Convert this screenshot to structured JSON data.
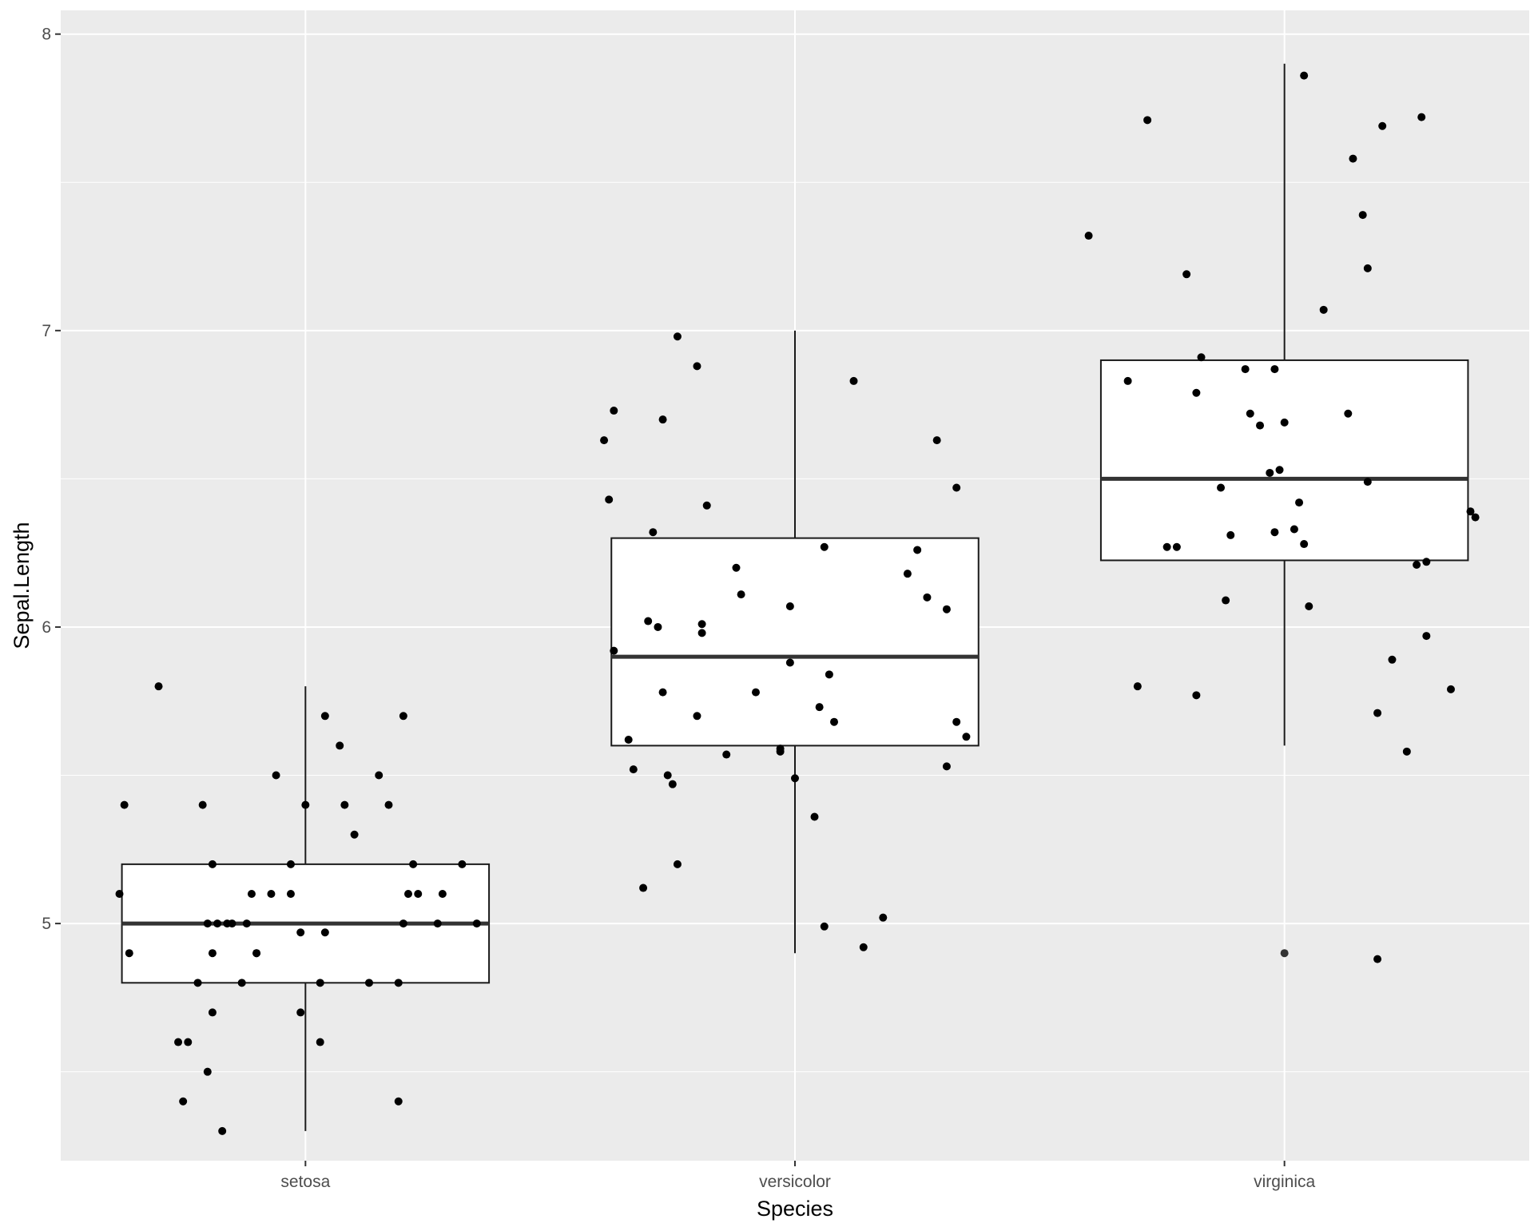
{
  "chart_data": {
    "type": "box",
    "xlabel": "Species",
    "ylabel": "Sepal.Length",
    "categories": [
      "setosa",
      "versicolor",
      "virginica"
    ],
    "ylim": [
      4.2,
      8.08
    ],
    "yticks": [
      5,
      6,
      7,
      8
    ],
    "grid": true,
    "colors": {
      "panel": "#ebebeb",
      "grid": "#ffffff",
      "box_fill": "#ffffff",
      "box_stroke": "#1a1a1a",
      "point": "#000000"
    },
    "boxes": [
      {
        "category": "setosa",
        "min": 4.3,
        "q1": 4.8,
        "median": 5.0,
        "q3": 5.2,
        "max": 5.8
      },
      {
        "category": "versicolor",
        "min": 4.9,
        "q1": 5.6,
        "median": 5.9,
        "q3": 6.3,
        "max": 7.0
      },
      {
        "category": "virginica",
        "min": 5.6,
        "q1": 6.225,
        "median": 6.5,
        "q3": 6.9,
        "max": 7.9,
        "outliers": [
          4.9
        ]
      }
    ],
    "points": [
      {
        "category": "setosa",
        "jitter": [
          -0.38,
          -0.36,
          -0.37,
          -0.3,
          -0.25,
          -0.26,
          -0.24,
          -0.2,
          -0.19,
          -0.22,
          -0.21,
          -0.2,
          -0.19,
          -0.19,
          -0.18,
          -0.17,
          -0.16,
          -0.15,
          -0.13,
          -0.12,
          -0.11,
          -0.1,
          -0.1,
          -0.07,
          -0.06,
          -0.03,
          -0.03,
          -0.01,
          -0.01,
          0.0,
          0.03,
          0.03,
          0.04,
          0.04,
          0.07,
          0.08,
          0.1,
          0.13,
          0.15,
          0.17,
          0.19,
          0.19,
          0.2,
          0.2,
          0.21,
          0.22,
          0.23,
          0.27,
          0.28,
          0.32,
          0.35
        ],
        "y": [
          5.1,
          4.9,
          5.4,
          5.8,
          4.4,
          4.6,
          4.6,
          4.5,
          4.7,
          4.8,
          5.4,
          5.0,
          5.2,
          4.9,
          5.0,
          4.3,
          5.0,
          5.0,
          4.8,
          5.0,
          5.1,
          4.9,
          4.9,
          5.1,
          5.5,
          5.2,
          5.1,
          4.7,
          4.97,
          5.4,
          4.6,
          4.8,
          4.97,
          5.7,
          5.6,
          5.4,
          5.3,
          4.8,
          5.5,
          5.4,
          4.4,
          4.8,
          5.0,
          5.7,
          5.1,
          5.2,
          5.1,
          5.0,
          5.1,
          5.2,
          5.0
        ]
      },
      {
        "category": "versicolor",
        "jitter": [
          -0.39,
          -0.38,
          -0.37,
          -0.37,
          -0.34,
          -0.33,
          -0.31,
          -0.3,
          -0.29,
          -0.28,
          -0.27,
          -0.27,
          -0.26,
          -0.25,
          -0.24,
          -0.24,
          -0.2,
          -0.2,
          -0.19,
          -0.19,
          -0.18,
          -0.14,
          -0.12,
          -0.11,
          -0.08,
          -0.03,
          -0.03,
          -0.01,
          -0.01,
          0.0,
          0.04,
          0.05,
          0.06,
          0.06,
          0.07,
          0.08,
          0.12,
          0.14,
          0.18,
          0.23,
          0.25,
          0.27,
          0.29,
          0.31,
          0.31,
          0.33,
          0.33,
          0.35
        ],
        "y": [
          6.63,
          6.43,
          6.73,
          5.92,
          5.62,
          5.52,
          5.12,
          6.02,
          6.32,
          6.0,
          6.7,
          5.78,
          5.5,
          5.47,
          6.98,
          5.2,
          5.7,
          6.88,
          5.98,
          6.01,
          6.41,
          5.57,
          6.2,
          6.11,
          5.78,
          5.58,
          5.59,
          6.07,
          5.88,
          5.49,
          5.36,
          5.73,
          6.27,
          4.99,
          5.84,
          5.68,
          6.83,
          4.92,
          5.02,
          6.18,
          6.26,
          6.1,
          6.63,
          5.53,
          6.06,
          5.68,
          6.47,
          5.63
        ]
      },
      {
        "category": "virginica",
        "jitter": [
          -0.4,
          -0.32,
          -0.3,
          -0.28,
          -0.24,
          -0.22,
          -0.2,
          -0.18,
          -0.18,
          -0.17,
          -0.13,
          -0.12,
          -0.11,
          -0.08,
          -0.07,
          -0.05,
          -0.02,
          -0.03,
          -0.02,
          -0.01,
          0.0,
          0.02,
          0.03,
          0.04,
          0.04,
          0.05,
          0.08,
          0.13,
          0.14,
          0.16,
          0.17,
          0.17,
          0.19,
          0.19,
          0.2,
          0.22,
          0.25,
          0.27,
          0.28,
          0.29,
          0.29,
          0.34,
          0.38,
          0.39
        ],
        "y": [
          7.32,
          6.83,
          5.8,
          7.71,
          6.27,
          6.27,
          7.19,
          6.79,
          5.77,
          6.91,
          6.47,
          6.09,
          6.31,
          6.87,
          6.72,
          6.68,
          6.32,
          6.52,
          6.87,
          6.53,
          6.69,
          6.33,
          6.42,
          6.28,
          7.86,
          6.07,
          7.07,
          6.72,
          7.58,
          7.39,
          6.49,
          7.21,
          5.71,
          4.88,
          7.69,
          5.89,
          5.58,
          6.21,
          7.72,
          6.22,
          5.97,
          5.79,
          6.39,
          6.37
        ]
      }
    ]
  }
}
